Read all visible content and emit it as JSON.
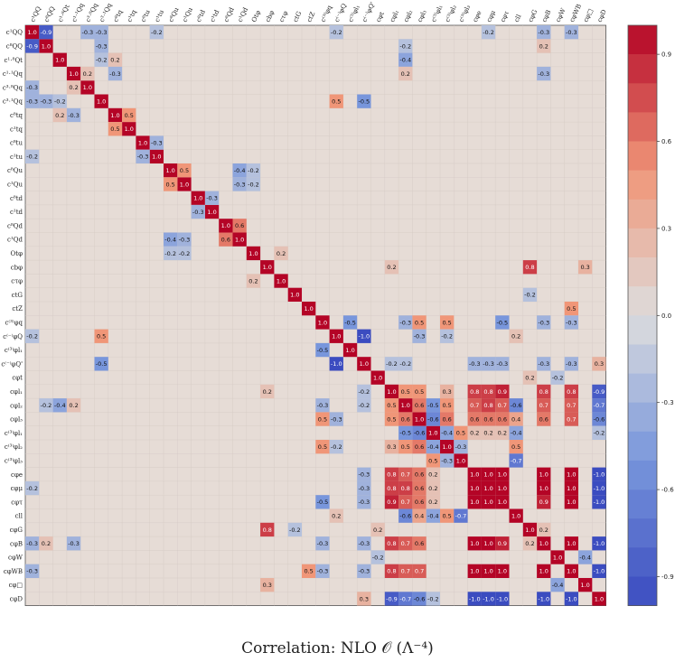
{
  "chart_data": {
    "type": "heatmap",
    "title": "Correlation: NLO 𝒪 (Λ⁻⁴)",
    "labels": [
      "c¹QQ",
      "c⁸QQ",
      "c¹⋅⁸Qt",
      "c¹⋅¹Qq",
      "c³⋅⁸Qq",
      "c³⋅¹Qq",
      "c⁸tq",
      "c¹tq",
      "c⁸tu",
      "c¹tu",
      "c⁸Qu",
      "c¹Qu",
      "c⁸td",
      "c¹td",
      "c⁸Qd",
      "c¹Qd",
      "Otφ",
      "cbφ",
      "cτφ",
      "ctG",
      "ctZ",
      "c⁽³⁾φq",
      "c⁽⁻⁾φQ",
      "c⁽³⁾φl₁",
      "c⁽⁻⁾φQ'",
      "cφt",
      "cφl₁",
      "cφl₂",
      "cφl₃",
      "c⁽³⁾φl₁",
      "c⁽³⁾φl₂",
      "c⁽³⁾φl₃",
      "cφe",
      "cφμ",
      "cφτ",
      "cll",
      "cφG",
      "cφB",
      "cφW",
      "cφWB",
      "cφ□",
      "cφD"
    ],
    "colorbar": {
      "min": -1.0,
      "max": 1.0,
      "ticks": [
        0.9,
        0.6,
        0.3,
        0.0,
        -0.3,
        -0.6,
        -0.9
      ]
    },
    "entries": [
      [
        0,
        1,
        -0.9
      ],
      [
        0,
        4,
        -0.3
      ],
      [
        0,
        5,
        -0.3
      ],
      [
        0,
        9,
        -0.2
      ],
      [
        0,
        22,
        -0.2
      ],
      [
        0,
        33,
        -0.2
      ],
      [
        0,
        37,
        -0.3
      ],
      [
        0,
        39,
        -0.3
      ],
      [
        1,
        5,
        -0.3
      ],
      [
        1,
        27,
        -0.2
      ],
      [
        1,
        37,
        0.2
      ],
      [
        2,
        5,
        -0.2
      ],
      [
        2,
        6,
        0.2
      ],
      [
        2,
        27,
        -0.4
      ],
      [
        3,
        4,
        0.2
      ],
      [
        3,
        6,
        -0.3
      ],
      [
        3,
        27,
        0.2
      ],
      [
        3,
        37,
        -0.3
      ],
      [
        5,
        22,
        0.5
      ],
      [
        5,
        24,
        -0.5
      ],
      [
        6,
        7,
        0.5
      ],
      [
        8,
        9,
        -0.3
      ],
      [
        10,
        11,
        0.5
      ],
      [
        10,
        15,
        -0.4
      ],
      [
        10,
        16,
        -0.2
      ],
      [
        11,
        15,
        -0.3
      ],
      [
        11,
        16,
        -0.2
      ],
      [
        12,
        13,
        -0.3
      ],
      [
        14,
        15,
        0.6
      ],
      [
        16,
        18,
        0.2
      ],
      [
        17,
        26,
        0.2
      ],
      [
        17,
        36,
        0.8
      ],
      [
        17,
        40,
        0.3
      ],
      [
        19,
        36,
        -0.2
      ],
      [
        20,
        39,
        0.5
      ],
      [
        21,
        23,
        -0.5
      ],
      [
        21,
        27,
        -0.3
      ],
      [
        21,
        28,
        0.5
      ],
      [
        21,
        30,
        0.5
      ],
      [
        21,
        34,
        -0.5
      ],
      [
        21,
        37,
        -0.3
      ],
      [
        21,
        39,
        -0.3
      ],
      [
        22,
        24,
        -1.0
      ],
      [
        22,
        28,
        -0.3
      ],
      [
        22,
        30,
        -0.2
      ],
      [
        22,
        35,
        0.2
      ],
      [
        24,
        26,
        -0.2
      ],
      [
        24,
        27,
        -0.2
      ],
      [
        24,
        32,
        -0.3
      ],
      [
        24,
        33,
        -0.3
      ],
      [
        24,
        34,
        -0.3
      ],
      [
        24,
        37,
        -0.3
      ],
      [
        24,
        39,
        -0.3
      ],
      [
        24,
        41,
        0.3
      ],
      [
        25,
        36,
        0.2
      ],
      [
        25,
        38,
        -0.2
      ],
      [
        26,
        27,
        0.5
      ],
      [
        26,
        28,
        0.5
      ],
      [
        26,
        30,
        0.3
      ],
      [
        26,
        32,
        0.8
      ],
      [
        26,
        33,
        0.8
      ],
      [
        26,
        34,
        0.9
      ],
      [
        26,
        37,
        0.8
      ],
      [
        26,
        39,
        0.8
      ],
      [
        26,
        41,
        -0.9
      ],
      [
        27,
        28,
        0.6
      ],
      [
        27,
        29,
        -0.5
      ],
      [
        27,
        30,
        0.5
      ],
      [
        27,
        32,
        0.7
      ],
      [
        27,
        33,
        0.8
      ],
      [
        27,
        34,
        0.7
      ],
      [
        27,
        35,
        -0.6
      ],
      [
        27,
        37,
        0.7
      ],
      [
        27,
        39,
        0.7
      ],
      [
        27,
        41,
        -0.7
      ],
      [
        28,
        29,
        -0.6
      ],
      [
        28,
        30,
        0.6
      ],
      [
        28,
        32,
        0.6
      ],
      [
        28,
        33,
        0.6
      ],
      [
        28,
        34,
        0.6
      ],
      [
        28,
        35,
        0.4
      ],
      [
        28,
        37,
        0.6
      ],
      [
        28,
        39,
        0.7
      ],
      [
        28,
        41,
        -0.6
      ],
      [
        29,
        30,
        -0.4
      ],
      [
        29,
        31,
        0.5
      ],
      [
        29,
        32,
        0.2
      ],
      [
        29,
        33,
        0.2
      ],
      [
        29,
        34,
        0.2
      ],
      [
        29,
        35,
        -0.4
      ],
      [
        29,
        41,
        -0.2
      ],
      [
        30,
        31,
        -0.3
      ],
      [
        30,
        35,
        0.5
      ],
      [
        31,
        35,
        -0.7
      ],
      [
        32,
        33,
        1.0
      ],
      [
        32,
        34,
        1.0
      ],
      [
        32,
        37,
        1.0
      ],
      [
        32,
        39,
        1.0
      ],
      [
        32,
        41,
        -1.0
      ],
      [
        33,
        34,
        1.0
      ],
      [
        33,
        37,
        1.0
      ],
      [
        33,
        39,
        1.0
      ],
      [
        33,
        41,
        -1.0
      ],
      [
        34,
        37,
        0.9
      ],
      [
        34,
        39,
        1.0
      ],
      [
        34,
        41,
        -1.0
      ],
      [
        36,
        37,
        0.2
      ],
      [
        37,
        39,
        1.0
      ],
      [
        37,
        41,
        -1.0
      ],
      [
        38,
        40,
        -0.4
      ],
      [
        39,
        41,
        -1.0
      ]
    ]
  }
}
